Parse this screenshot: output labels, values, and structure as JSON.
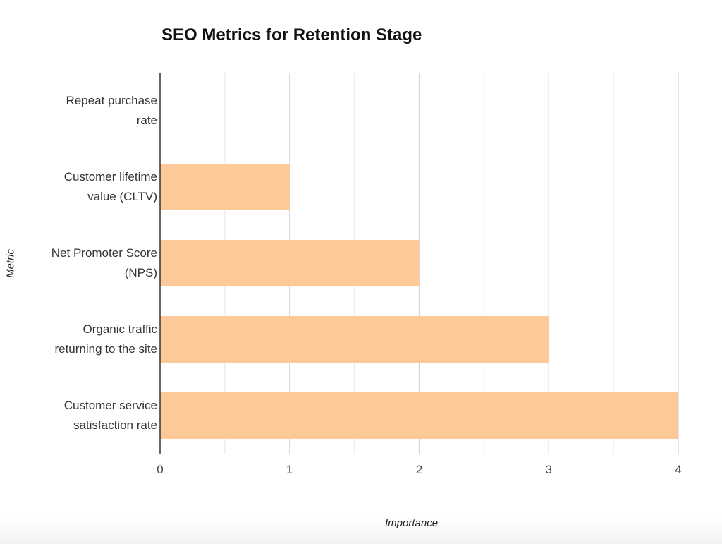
{
  "chart_data": {
    "type": "bar",
    "orientation": "horizontal",
    "title": "SEO Metrics for Retention Stage",
    "xlabel": "Importance",
    "ylabel": "Metric",
    "categories": [
      [
        "Repeat purchase",
        "rate"
      ],
      [
        "Customer lifetime",
        "value (CLTV)"
      ],
      [
        "Net Promoter Score",
        "(NPS)"
      ],
      [
        "Organic traffic",
        "returning to the site"
      ],
      [
        "Customer service",
        "satisfaction rate"
      ]
    ],
    "values": [
      0,
      1,
      2,
      3,
      4
    ],
    "xlim": [
      0,
      4
    ],
    "xticks": [
      "0",
      "1",
      "2",
      "3",
      "4"
    ],
    "grid": true,
    "legend": "none",
    "bar_color": "#fdc999"
  }
}
